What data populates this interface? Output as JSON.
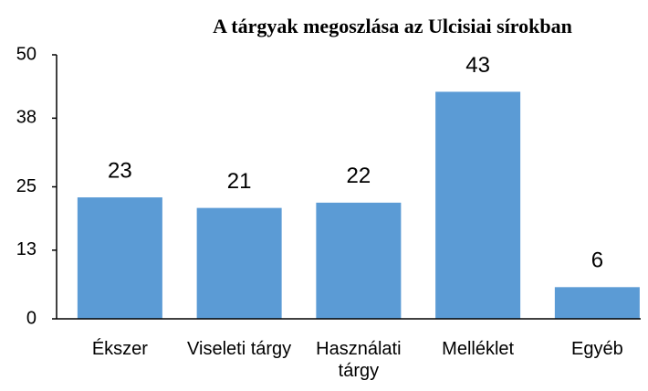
{
  "chart_data": {
    "type": "bar",
    "title": "A tárgyak megoszlása az Ulcisiai sírokban",
    "categories": [
      "Ékszer",
      "Viseleti tárgy",
      "Használati tárgy",
      "Melléklet",
      "Egyéb"
    ],
    "values": [
      23,
      21,
      22,
      43,
      6
    ],
    "color": "#5b9bd5",
    "ylim": [
      0,
      50
    ],
    "yticks": [
      0,
      13,
      25,
      38,
      50
    ],
    "grid": false
  }
}
